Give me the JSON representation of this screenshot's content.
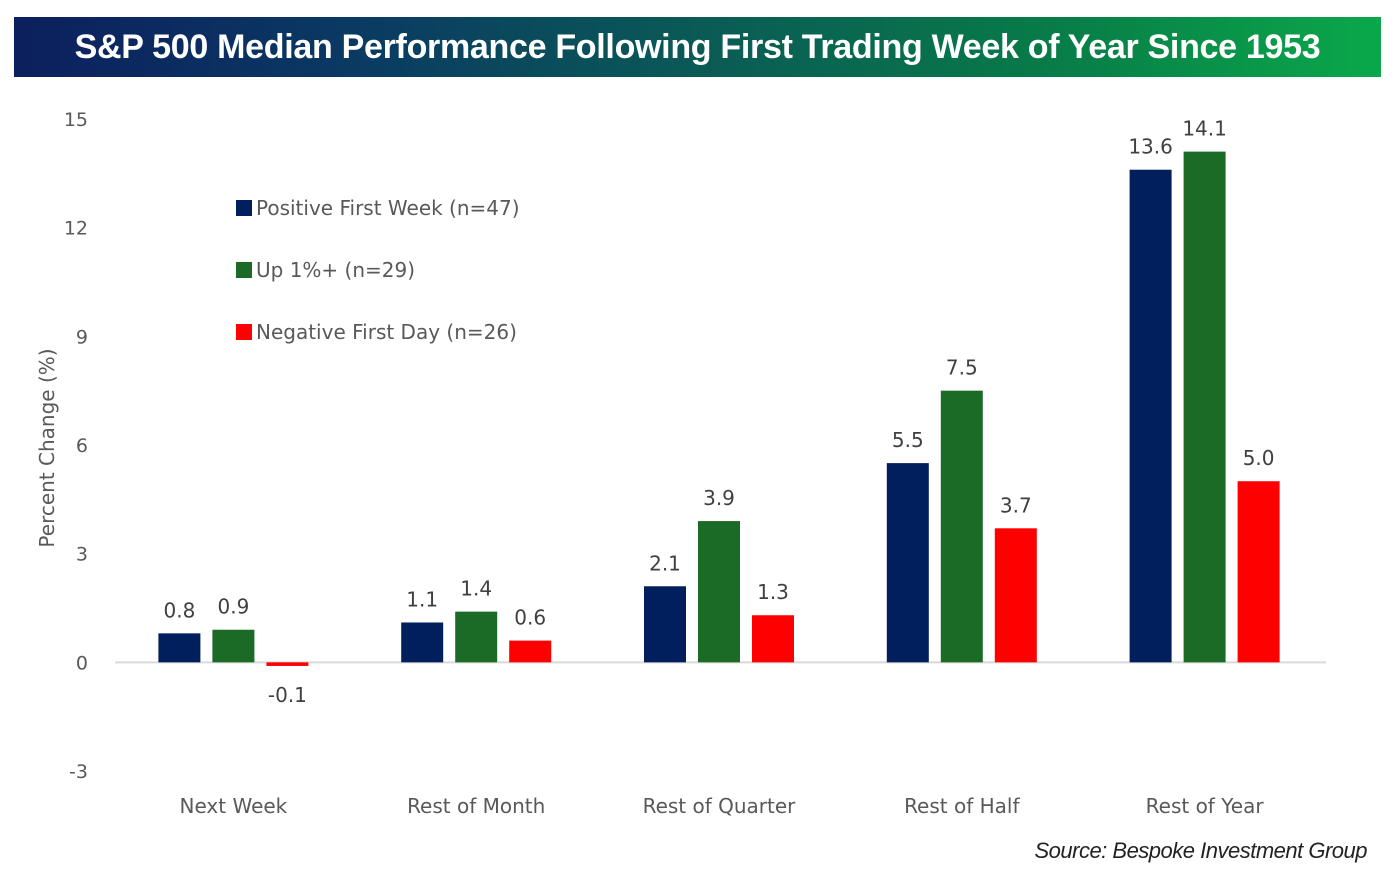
{
  "header": {
    "title": "S&P 500 Median Performance Following First Trading Week of Year Since 1953"
  },
  "source": "Source: Bespoke Investment Group",
  "colors": {
    "title_gradient_start": "#0c1f5e",
    "title_gradient_end": "#0aa84a",
    "zero_line": "#d9d9d9"
  },
  "chart_data": {
    "type": "bar",
    "title": "S&P 500 Median Performance Following First Trading Week of Year Since 1953",
    "xlabel": "",
    "ylabel": "Percent Change (%)",
    "ylim": [
      -3,
      15
    ],
    "yticks": [
      -3,
      0,
      3,
      6,
      9,
      12,
      15
    ],
    "ytick_labels": [
      "-3",
      "0",
      "3",
      "6",
      "9",
      "12",
      "15"
    ],
    "grid": false,
    "legend_position": "top-left",
    "categories": [
      "Next Week",
      "Rest of Month",
      "Rest of Quarter",
      "Rest of Half",
      "Rest of Year"
    ],
    "series": [
      {
        "name": "Positive First Week (n=47)",
        "color": "#001f5c",
        "values": [
          0.8,
          1.1,
          2.1,
          5.5,
          13.6
        ],
        "labels": [
          "0.8",
          "1.1",
          "2.1",
          "5.5",
          "13.6"
        ]
      },
      {
        "name": "Up 1%+ (n=29)",
        "color": "#1b6b27",
        "values": [
          0.9,
          1.4,
          3.9,
          7.5,
          14.1
        ],
        "labels": [
          "0.9",
          "1.4",
          "3.9",
          "7.5",
          "14.1"
        ]
      },
      {
        "name": "Negative First Day (n=26)",
        "color": "#ff0000",
        "values": [
          -0.1,
          0.6,
          1.3,
          3.7,
          5.0
        ],
        "labels": [
          "-0.1",
          "0.6",
          "1.3",
          "3.7",
          "5.0"
        ]
      }
    ]
  }
}
